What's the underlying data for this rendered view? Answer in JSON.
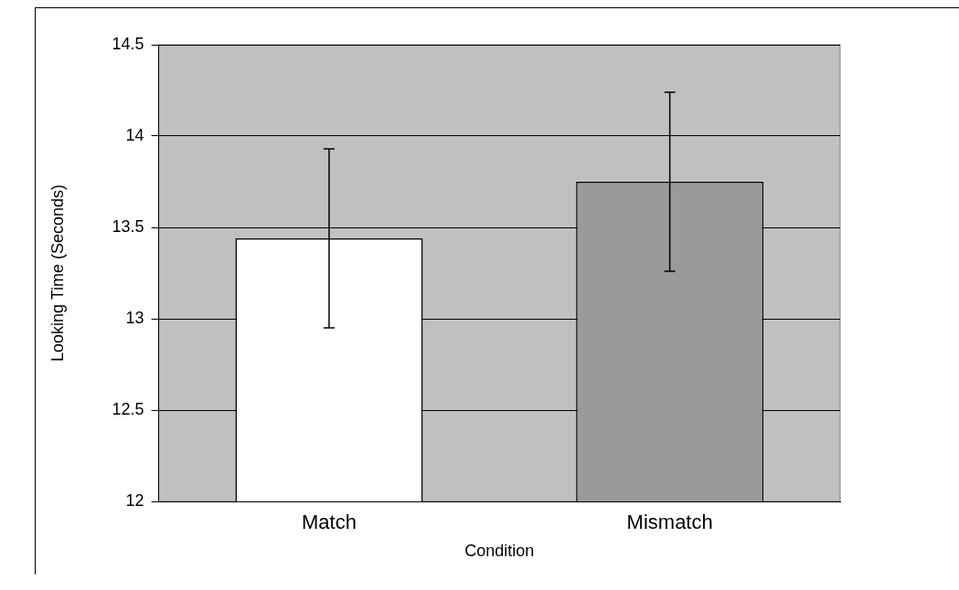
{
  "chart_data": {
    "type": "bar",
    "xlabel": "Condition",
    "ylabel": "Looking Time (Seconds)",
    "categories": [
      "Match",
      "Mismatch"
    ],
    "values": [
      13.44,
      13.75
    ],
    "colors": [
      "#ffffff",
      "#9a9a9a"
    ],
    "errors": [
      0.49,
      0.49
    ],
    "ylim": [
      12,
      14.5
    ],
    "yticks": [
      12,
      12.5,
      13,
      13.5,
      14,
      14.5
    ],
    "grid": "y"
  }
}
